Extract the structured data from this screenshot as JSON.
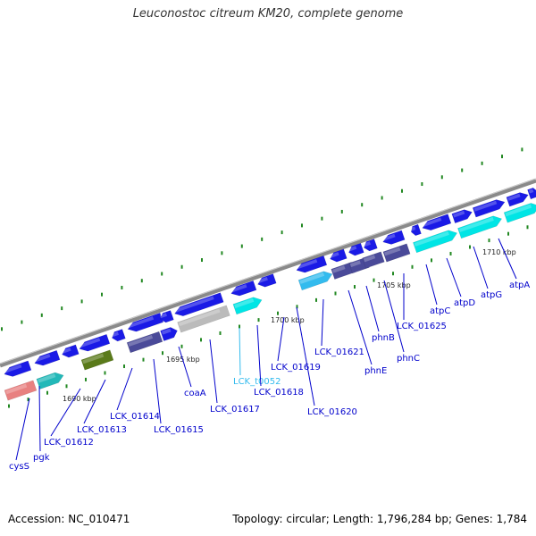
{
  "title": "Leuconostoc citreum KM20, complete genome",
  "footer": {
    "accession": "Accession: NC_010471",
    "info": "Topology: circular; Length: 1,796,284 bp; Genes: 1,784"
  },
  "colors": {
    "cds": "#1a1ae6",
    "cyan": "#00e5e5",
    "light_blue": "#33bbee",
    "slate": "#4a4a99",
    "olive": "#5a7a1a",
    "gray": "#bbbbbb",
    "pink": "#e88080",
    "teal": "#22b8b8",
    "label": "#0000cc",
    "trna_label": "#33bbee",
    "tick": "#228822",
    "backbone": "#8a8a8a"
  },
  "kbp_marks": [
    "1690 kbp",
    "1695 kbp",
    "1700 kbp",
    "1705 kbp",
    "1710 kbp"
  ],
  "genes": [
    {
      "label": "cysS"
    },
    {
      "label": "pgk"
    },
    {
      "label": "LCK_01612"
    },
    {
      "label": "LCK_01613"
    },
    {
      "label": "LCK_01614"
    },
    {
      "label": "LCK_01615"
    },
    {
      "label": "coaA"
    },
    {
      "label": "LCK_01617"
    },
    {
      "label": "LCK_t0052"
    },
    {
      "label": "LCK_01618"
    },
    {
      "label": "LCK_01619"
    },
    {
      "label": "LCK_01620"
    },
    {
      "label": "LCK_01621"
    },
    {
      "label": "phnE"
    },
    {
      "label": "phnB"
    },
    {
      "label": "phnC"
    },
    {
      "label": "LCK_01625"
    },
    {
      "label": "atpC"
    },
    {
      "label": "atpD"
    },
    {
      "label": "atpG"
    },
    {
      "label": "atpA"
    }
  ]
}
